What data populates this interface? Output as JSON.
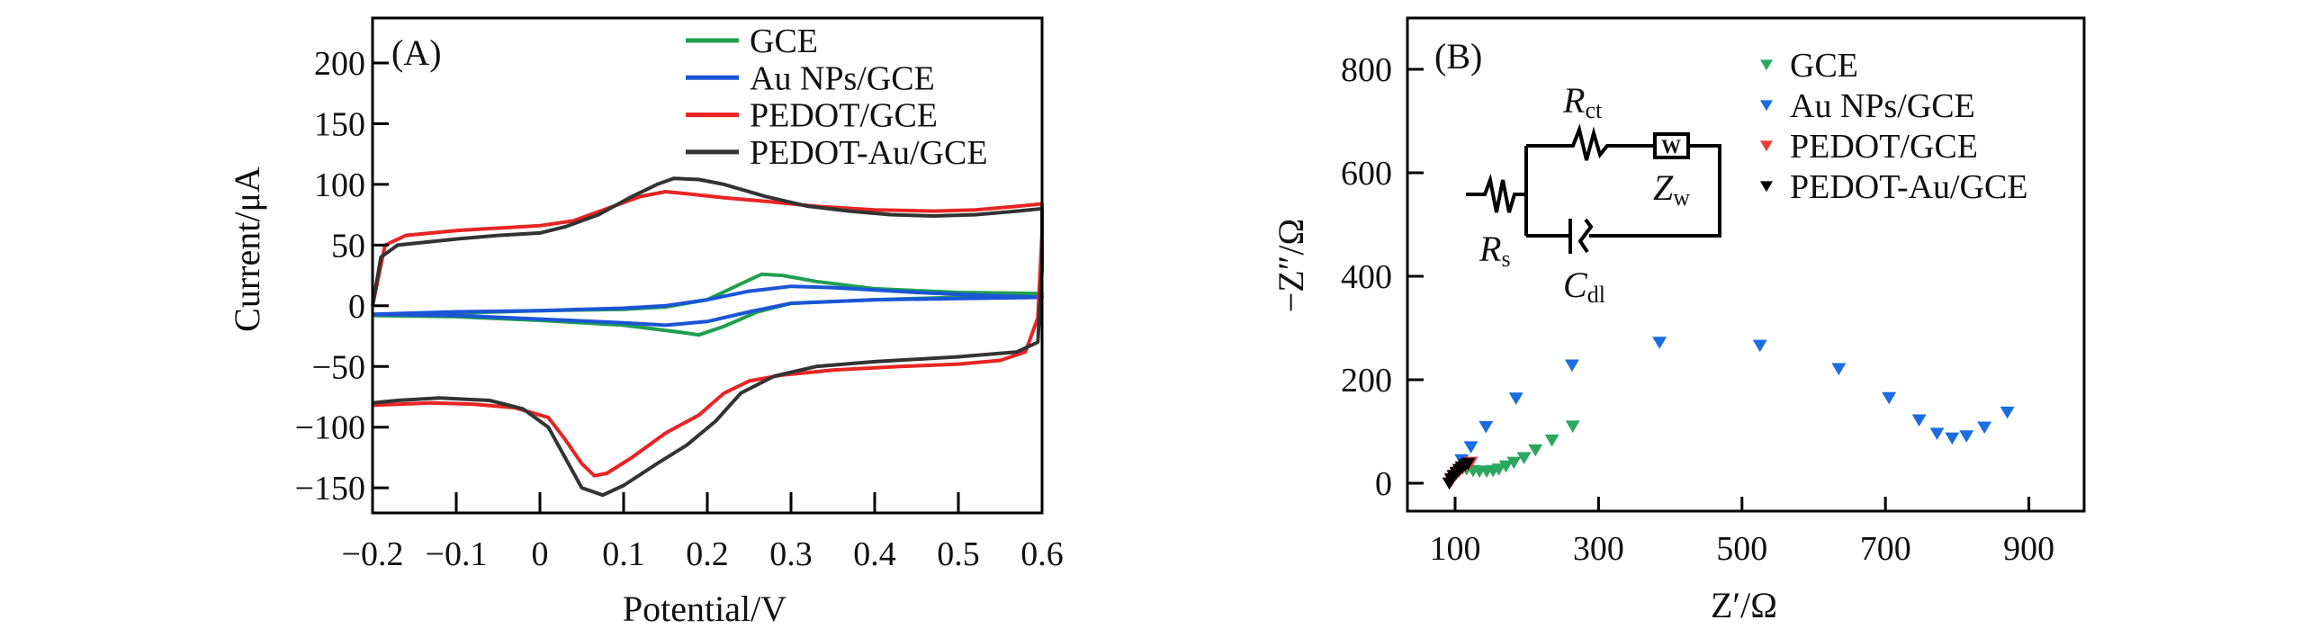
{
  "chart_data": [
    {
      "type": "line",
      "panel_label": "(A)",
      "title": "",
      "xlabel": "Potential/V",
      "ylabel": "Current/μA",
      "xlim": [
        -0.2,
        0.6
      ],
      "ylim": [
        -171,
        237
      ],
      "xticks": [
        -0.2,
        -0.1,
        0,
        0.1,
        0.2,
        0.3,
        0.4,
        0.5,
        0.6
      ],
      "xtick_labels": [
        "−0.2",
        "−0.1",
        "0",
        "0.1",
        "0.2",
        "0.3",
        "0.4",
        "0.5",
        "0.6"
      ],
      "yticks": [
        200,
        150,
        100,
        50,
        0,
        -50,
        -100,
        -150
      ],
      "ytick_labels": [
        "200",
        "150",
        "100",
        "50",
        "0",
        "−50",
        "−100",
        "−150"
      ],
      "legend_position": "top-right",
      "grid": false,
      "series": [
        {
          "name": "GCE",
          "color": "#1f9e4f",
          "x": [
            -0.2,
            -0.1,
            0,
            0.1,
            0.15,
            0.2,
            0.24,
            0.265,
            0.29,
            0.33,
            0.4,
            0.5,
            0.6,
            0.5,
            0.4,
            0.3,
            0.26,
            0.22,
            0.19,
            0.17,
            0.1,
            0,
            -0.1,
            -0.2
          ],
          "y": [
            -8,
            -6,
            -4,
            -3,
            -1,
            5,
            18,
            26,
            25,
            20,
            14,
            11,
            10,
            7,
            5,
            2,
            -5,
            -17,
            -24,
            -22,
            -16,
            -12,
            -9,
            -8
          ]
        },
        {
          "name": "Au NPs/GCE",
          "color": "#1a55d6",
          "x": [
            -0.2,
            -0.1,
            0,
            0.1,
            0.15,
            0.2,
            0.25,
            0.3,
            0.35,
            0.45,
            0.55,
            0.6,
            0.5,
            0.4,
            0.3,
            0.25,
            0.2,
            0.15,
            0.1,
            0,
            -0.1,
            -0.2
          ],
          "y": [
            -7,
            -5,
            -4,
            -2,
            0,
            5,
            12,
            16,
            15,
            11,
            8,
            7,
            6,
            5,
            2,
            -5,
            -13,
            -16,
            -14,
            -11,
            -8,
            -7
          ]
        },
        {
          "name": "PEDOT/GCE",
          "color": "#e82424",
          "x": [
            -0.2,
            -0.185,
            -0.16,
            -0.1,
            -0.05,
            0,
            0.04,
            0.08,
            0.12,
            0.15,
            0.18,
            0.22,
            0.27,
            0.33,
            0.4,
            0.47,
            0.52,
            0.57,
            0.6,
            0.6,
            0.595,
            0.58,
            0.55,
            0.5,
            0.43,
            0.35,
            0.29,
            0.25,
            0.22,
            0.19,
            0.15,
            0.11,
            0.08,
            0.065,
            0.05,
            0.03,
            0.01,
            -0.03,
            -0.08,
            -0.13,
            -0.2
          ],
          "y": [
            0,
            50,
            58,
            62,
            64,
            66,
            70,
            80,
            90,
            94,
            92,
            89,
            86,
            82,
            79,
            78,
            79,
            82,
            84,
            60,
            -10,
            -38,
            -45,
            -48,
            -50,
            -53,
            -57,
            -62,
            -72,
            -90,
            -105,
            -125,
            -138,
            -140,
            -130,
            -110,
            -92,
            -84,
            -81,
            -80,
            -82
          ]
        },
        {
          "name": "PEDOT-Au/GCE",
          "color": "#333333",
          "x": [
            -0.2,
            -0.19,
            -0.17,
            -0.1,
            -0.05,
            0,
            0.03,
            0.07,
            0.11,
            0.14,
            0.16,
            0.19,
            0.22,
            0.27,
            0.32,
            0.37,
            0.42,
            0.47,
            0.52,
            0.57,
            0.6,
            0.6,
            0.595,
            0.57,
            0.5,
            0.45,
            0.4,
            0.33,
            0.28,
            0.24,
            0.21,
            0.175,
            0.14,
            0.1,
            0.075,
            0.05,
            0.03,
            0.01,
            -0.02,
            -0.06,
            -0.12,
            -0.17,
            -0.2
          ],
          "y": [
            0,
            40,
            50,
            55,
            58,
            60,
            65,
            75,
            90,
            100,
            105,
            104,
            100,
            90,
            82,
            78,
            75,
            74,
            75,
            78,
            80,
            30,
            -30,
            -38,
            -42,
            -44,
            -46,
            -50,
            -58,
            -72,
            -95,
            -115,
            -130,
            -148,
            -156,
            -150,
            -125,
            -100,
            -85,
            -78,
            -76,
            -78,
            -80
          ]
        }
      ]
    },
    {
      "type": "scatter",
      "panel_label": "(B)",
      "title": "",
      "xlabel": "Z′/Ω",
      "ylabel": "−Z″/Ω",
      "xlim": [
        33,
        977
      ],
      "ylim": [
        -54,
        899
      ],
      "xticks": [
        100,
        300,
        500,
        700,
        900
      ],
      "xtick_labels": [
        "100",
        "300",
        "500",
        "700",
        "900"
      ],
      "yticks": [
        0,
        200,
        400,
        600,
        800
      ],
      "ytick_labels": [
        "0",
        "200",
        "400",
        "600",
        "800"
      ],
      "legend_position": "top-right",
      "grid": false,
      "marker": "down-triangle",
      "series": [
        {
          "name": "GCE",
          "color": "#2aa860",
          "x": [
            109,
            116,
            125,
            134,
            144,
            153,
            161,
            171,
            182,
            196,
            212,
            235,
            264
          ],
          "y": [
            30,
            27,
            24,
            23,
            23,
            24,
            27,
            33,
            40,
            49,
            64,
            83,
            110
          ]
        },
        {
          "name": "Au NPs/GCE",
          "color": "#1a6ee0",
          "x": [
            109,
            122,
            143,
            185,
            263,
            385,
            525,
            635,
            705,
            747,
            772,
            793,
            813,
            838,
            870
          ],
          "y": [
            45,
            70,
            109,
            164,
            228,
            272,
            266,
            221,
            165,
            122,
            96,
            87,
            91,
            108,
            137
          ]
        },
        {
          "name": "PEDOT/GCE",
          "color": "#f03a3a",
          "x": [
            95,
            100,
            105,
            110,
            117,
            122
          ],
          "y": [
            5,
            15,
            22,
            28,
            35,
            40
          ]
        },
        {
          "name": "PEDOT-Au/GCE",
          "color": "#000000",
          "x": [
            92,
            95,
            98,
            102,
            106,
            110,
            114,
            118
          ],
          "y": [
            0,
            8,
            14,
            20,
            26,
            31,
            35,
            38
          ]
        }
      ],
      "inset_circuit": {
        "labels": {
          "rs": "R",
          "rs_sub": "s",
          "rct": "R",
          "rct_sub": "ct",
          "zw": "Z",
          "zw_sub": "w",
          "cdl": "C",
          "cdl_sub": "dl",
          "warburg_box": "W"
        }
      }
    }
  ]
}
